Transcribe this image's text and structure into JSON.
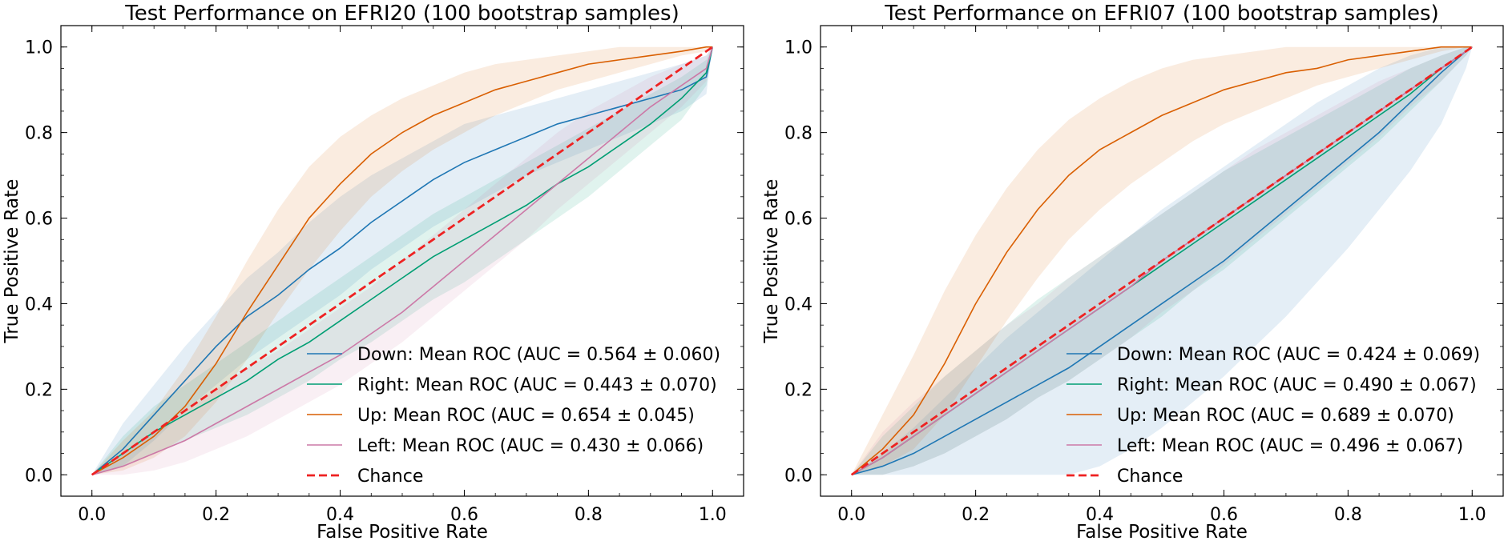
{
  "chart_data": [
    {
      "type": "line",
      "title": "Test Performance on EFRI20 (100 bootstrap samples)",
      "xlabel": "False Positive Rate",
      "ylabel": "True Positive Rate",
      "xlim": [
        -0.05,
        1.05
      ],
      "ylim": [
        -0.05,
        1.05
      ],
      "xticks": [
        "0.0",
        "0.2",
        "0.4",
        "0.6",
        "0.8",
        "1.0"
      ],
      "yticks": [
        "0.0",
        "0.2",
        "0.4",
        "0.6",
        "0.8",
        "1.0"
      ],
      "grid": false,
      "legend_position": "bottom-right",
      "x": [
        0,
        0.05,
        0.1,
        0.15,
        0.2,
        0.25,
        0.3,
        0.35,
        0.4,
        0.45,
        0.5,
        0.55,
        0.6,
        0.65,
        0.7,
        0.75,
        0.8,
        0.85,
        0.9,
        0.95,
        0.99,
        1.0
      ],
      "series": [
        {
          "name": "Down:  Mean ROC (AUC = 0.564 ± 0.060)",
          "color": "#1f77b4",
          "values": [
            0,
            0.06,
            0.14,
            0.22,
            0.3,
            0.37,
            0.42,
            0.48,
            0.53,
            0.59,
            0.64,
            0.69,
            0.73,
            0.76,
            0.79,
            0.82,
            0.84,
            0.86,
            0.88,
            0.9,
            0.93,
            1.0
          ],
          "lower": [
            0,
            0.02,
            0.08,
            0.15,
            0.21,
            0.27,
            0.32,
            0.37,
            0.42,
            0.48,
            0.53,
            0.58,
            0.62,
            0.66,
            0.7,
            0.73,
            0.76,
            0.79,
            0.82,
            0.85,
            0.89,
            1.0
          ],
          "upper": [
            0,
            0.12,
            0.21,
            0.3,
            0.38,
            0.46,
            0.52,
            0.59,
            0.65,
            0.7,
            0.74,
            0.78,
            0.82,
            0.84,
            0.86,
            0.88,
            0.9,
            0.92,
            0.94,
            0.96,
            0.98,
            1.0
          ]
        },
        {
          "name": "Right:  Mean ROC (AUC = 0.443 ± 0.070)",
          "color": "#009e73",
          "values": [
            0,
            0.05,
            0.1,
            0.14,
            0.18,
            0.22,
            0.27,
            0.31,
            0.36,
            0.41,
            0.46,
            0.51,
            0.55,
            0.59,
            0.63,
            0.68,
            0.72,
            0.77,
            0.82,
            0.88,
            0.94,
            1.0
          ],
          "lower": [
            0,
            0.02,
            0.05,
            0.08,
            0.11,
            0.14,
            0.18,
            0.22,
            0.27,
            0.31,
            0.36,
            0.41,
            0.45,
            0.5,
            0.55,
            0.6,
            0.65,
            0.71,
            0.77,
            0.83,
            0.91,
            1.0
          ],
          "upper": [
            0,
            0.09,
            0.16,
            0.21,
            0.26,
            0.31,
            0.36,
            0.41,
            0.46,
            0.51,
            0.56,
            0.61,
            0.65,
            0.69,
            0.73,
            0.77,
            0.81,
            0.85,
            0.89,
            0.93,
            0.97,
            1.0
          ]
        },
        {
          "name": "Up:  Mean ROC (AUC = 0.654 ± 0.045)",
          "color": "#d95f02",
          "values": [
            0,
            0.04,
            0.09,
            0.16,
            0.26,
            0.38,
            0.49,
            0.6,
            0.68,
            0.75,
            0.8,
            0.84,
            0.87,
            0.9,
            0.92,
            0.94,
            0.96,
            0.97,
            0.98,
            0.99,
            1.0,
            1.0
          ],
          "lower": [
            0,
            0.01,
            0.04,
            0.09,
            0.17,
            0.27,
            0.38,
            0.48,
            0.57,
            0.65,
            0.71,
            0.76,
            0.8,
            0.84,
            0.87,
            0.9,
            0.92,
            0.94,
            0.96,
            0.98,
            0.99,
            1.0
          ],
          "upper": [
            0,
            0.08,
            0.15,
            0.25,
            0.37,
            0.5,
            0.62,
            0.72,
            0.79,
            0.84,
            0.88,
            0.91,
            0.94,
            0.96,
            0.97,
            0.98,
            0.99,
            1.0,
            1.0,
            1.0,
            1.0,
            1.0
          ]
        },
        {
          "name": "Left:  Mean ROC (AUC = 0.430 ± 0.066)",
          "color": "#cc79a7",
          "values": [
            0,
            0.02,
            0.05,
            0.08,
            0.12,
            0.16,
            0.2,
            0.24,
            0.28,
            0.33,
            0.38,
            0.44,
            0.5,
            0.56,
            0.62,
            0.68,
            0.74,
            0.8,
            0.86,
            0.91,
            0.95,
            1.0
          ],
          "lower": [
            0,
            0.0,
            0.01,
            0.03,
            0.06,
            0.09,
            0.13,
            0.17,
            0.21,
            0.26,
            0.31,
            0.37,
            0.43,
            0.49,
            0.55,
            0.62,
            0.68,
            0.74,
            0.8,
            0.86,
            0.92,
            1.0
          ],
          "upper": [
            0,
            0.05,
            0.1,
            0.15,
            0.2,
            0.25,
            0.29,
            0.34,
            0.39,
            0.44,
            0.5,
            0.56,
            0.62,
            0.68,
            0.74,
            0.8,
            0.85,
            0.89,
            0.93,
            0.96,
            0.98,
            1.0
          ]
        }
      ],
      "chance": {
        "name": "Chance",
        "color": "#ee2222",
        "x": [
          0,
          1
        ],
        "y": [
          0,
          1
        ]
      }
    },
    {
      "type": "line",
      "title": "Test Performance on EFRI07 (100 bootstrap samples)",
      "xlabel": "False Positive Rate",
      "ylabel": "True Positive Rate",
      "xlim": [
        -0.05,
        1.05
      ],
      "ylim": [
        -0.05,
        1.05
      ],
      "xticks": [
        "0.0",
        "0.2",
        "0.4",
        "0.6",
        "0.8",
        "1.0"
      ],
      "yticks": [
        "0.0",
        "0.2",
        "0.4",
        "0.6",
        "0.8",
        "1.0"
      ],
      "grid": false,
      "legend_position": "bottom-right",
      "x": [
        0,
        0.05,
        0.1,
        0.15,
        0.2,
        0.25,
        0.3,
        0.35,
        0.4,
        0.45,
        0.5,
        0.55,
        0.6,
        0.65,
        0.7,
        0.75,
        0.8,
        0.85,
        0.9,
        0.95,
        0.99,
        1.0
      ],
      "series": [
        {
          "name": "Down:  Mean ROC (AUC = 0.424 ± 0.069)",
          "color": "#1f77b4",
          "values": [
            0,
            0.02,
            0.05,
            0.09,
            0.13,
            0.17,
            0.21,
            0.25,
            0.3,
            0.35,
            0.4,
            0.45,
            0.5,
            0.56,
            0.62,
            0.68,
            0.74,
            0.8,
            0.87,
            0.94,
            0.99,
            1.0
          ],
          "lower": [
            0,
            0.0,
            0.0,
            0.0,
            0.0,
            0.0,
            0.0,
            0.0,
            0.02,
            0.06,
            0.11,
            0.17,
            0.23,
            0.3,
            0.37,
            0.45,
            0.53,
            0.62,
            0.71,
            0.82,
            0.95,
            1.0
          ],
          "upper": [
            0,
            0.05,
            0.11,
            0.18,
            0.25,
            0.32,
            0.38,
            0.44,
            0.5,
            0.56,
            0.62,
            0.67,
            0.72,
            0.77,
            0.82,
            0.87,
            0.91,
            0.95,
            0.98,
            1.0,
            1.0,
            1.0
          ]
        },
        {
          "name": "Right:  Mean ROC (AUC = 0.490 ± 0.067)",
          "color": "#009e73",
          "values": [
            0,
            0.04,
            0.09,
            0.14,
            0.19,
            0.24,
            0.29,
            0.34,
            0.39,
            0.44,
            0.49,
            0.54,
            0.59,
            0.64,
            0.69,
            0.74,
            0.79,
            0.84,
            0.89,
            0.95,
            0.99,
            1.0
          ],
          "lower": [
            0,
            0.0,
            0.02,
            0.05,
            0.09,
            0.13,
            0.18,
            0.22,
            0.27,
            0.32,
            0.37,
            0.43,
            0.48,
            0.54,
            0.6,
            0.66,
            0.72,
            0.78,
            0.85,
            0.92,
            0.98,
            1.0
          ],
          "upper": [
            0,
            0.09,
            0.16,
            0.23,
            0.29,
            0.35,
            0.41,
            0.46,
            0.51,
            0.56,
            0.61,
            0.66,
            0.71,
            0.75,
            0.79,
            0.83,
            0.87,
            0.91,
            0.95,
            0.98,
            1.0,
            1.0
          ]
        },
        {
          "name": "Up:  Mean ROC (AUC = 0.689 ± 0.070)",
          "color": "#d95f02",
          "values": [
            0,
            0.06,
            0.14,
            0.26,
            0.4,
            0.52,
            0.62,
            0.7,
            0.76,
            0.8,
            0.84,
            0.87,
            0.9,
            0.92,
            0.94,
            0.95,
            0.97,
            0.98,
            0.99,
            1.0,
            1.0,
            1.0
          ],
          "lower": [
            0,
            0.02,
            0.06,
            0.14,
            0.25,
            0.36,
            0.46,
            0.55,
            0.62,
            0.68,
            0.73,
            0.78,
            0.82,
            0.85,
            0.88,
            0.91,
            0.93,
            0.95,
            0.97,
            0.99,
            1.0,
            1.0
          ],
          "upper": [
            0,
            0.14,
            0.28,
            0.43,
            0.56,
            0.67,
            0.76,
            0.83,
            0.88,
            0.92,
            0.95,
            0.97,
            0.98,
            0.99,
            1.0,
            1.0,
            1.0,
            1.0,
            1.0,
            1.0,
            1.0,
            1.0
          ]
        },
        {
          "name": "Left:  Mean ROC (AUC = 0.496 ± 0.067)",
          "color": "#cc79a7",
          "values": [
            0,
            0.04,
            0.09,
            0.14,
            0.19,
            0.24,
            0.29,
            0.34,
            0.39,
            0.44,
            0.5,
            0.55,
            0.6,
            0.65,
            0.7,
            0.75,
            0.8,
            0.85,
            0.9,
            0.95,
            0.99,
            1.0
          ],
          "lower": [
            0,
            0.0,
            0.02,
            0.05,
            0.09,
            0.13,
            0.18,
            0.22,
            0.27,
            0.32,
            0.38,
            0.43,
            0.49,
            0.55,
            0.61,
            0.67,
            0.73,
            0.79,
            0.86,
            0.92,
            0.98,
            1.0
          ],
          "upper": [
            0,
            0.1,
            0.17,
            0.23,
            0.29,
            0.35,
            0.4,
            0.46,
            0.51,
            0.56,
            0.61,
            0.66,
            0.71,
            0.76,
            0.8,
            0.84,
            0.88,
            0.92,
            0.95,
            0.98,
            1.0,
            1.0
          ]
        }
      ],
      "chance": {
        "name": "Chance",
        "color": "#ee2222",
        "x": [
          0,
          1
        ],
        "y": [
          0,
          1
        ]
      }
    }
  ]
}
